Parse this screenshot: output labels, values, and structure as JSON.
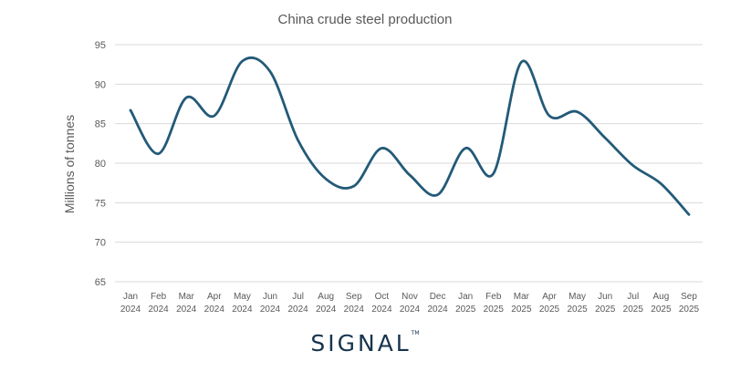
{
  "chart_data": {
    "type": "line",
    "title": "China crude steel production",
    "ylabel": "Millions of tonnes",
    "xlabel": "",
    "ylim": [
      65,
      95
    ],
    "yticks": [
      65,
      70,
      75,
      80,
      85,
      90,
      95
    ],
    "grid": true,
    "legend": "none",
    "categories": [
      [
        "Jan",
        "2024"
      ],
      [
        "Feb",
        "2024"
      ],
      [
        "Mar",
        "2024"
      ],
      [
        "Apr",
        "2024"
      ],
      [
        "May",
        "2024"
      ],
      [
        "Jun",
        "2024"
      ],
      [
        "Jul",
        "2024"
      ],
      [
        "Aug",
        "2024"
      ],
      [
        "Sep",
        "2024"
      ],
      [
        "Oct",
        "2024"
      ],
      [
        "Nov",
        "2024"
      ],
      [
        "Dec",
        "2024"
      ],
      [
        "Jan",
        "2025"
      ],
      [
        "Feb",
        "2025"
      ],
      [
        "Mar",
        "2025"
      ],
      [
        "Apr",
        "2025"
      ],
      [
        "May",
        "2025"
      ],
      [
        "Jun",
        "2025"
      ],
      [
        "Jul",
        "2025"
      ],
      [
        "Aug",
        "2025"
      ],
      [
        "Sep",
        "2025"
      ]
    ],
    "series": [
      {
        "values": [
          86.7,
          81.2,
          88.3,
          86.0,
          92.9,
          91.6,
          82.9,
          78.0,
          77.1,
          81.9,
          78.5,
          76.0,
          81.9,
          78.7,
          92.8,
          86.0,
          86.5,
          83.2,
          79.7,
          77.4,
          73.5
        ]
      }
    ],
    "colors": {
      "series": "#235a78",
      "grid": "#d9d9d9",
      "text": "#595959"
    }
  },
  "logo": {
    "text": "SIGNAL",
    "mark": "TM"
  }
}
